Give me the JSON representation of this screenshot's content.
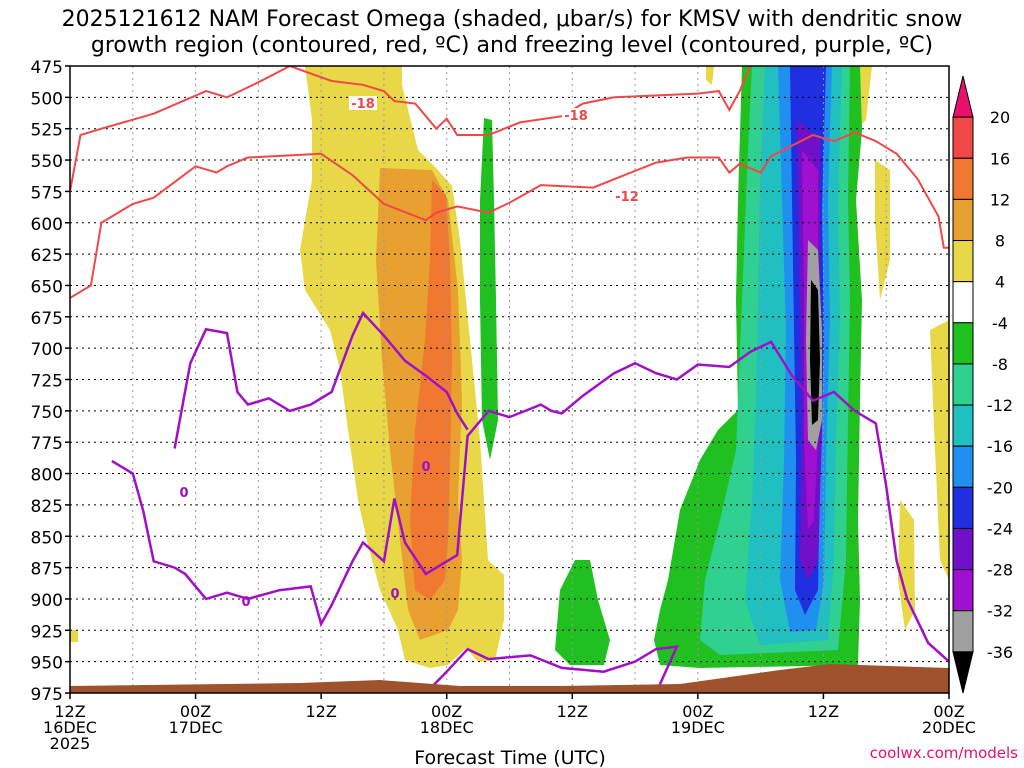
{
  "chart_data": {
    "type": "heatmap",
    "title_line1": "2025121612 NAM Forecast Omega (shaded, μbar/s) for KMSV with dendritic snow",
    "title_line2": "growth region (contoured, red, ºC) and freezing level (contoured, purple, ºC)",
    "xlabel": "Forecast Time (UTC)",
    "credit": "coolwx.com/models",
    "x_range_hours": [
      0,
      84
    ],
    "y_range_hpa": [
      475,
      975
    ],
    "y_ticks": [
      "475",
      "500",
      "525",
      "550",
      "575",
      "600",
      "625",
      "650",
      "675",
      "700",
      "725",
      "750",
      "775",
      "800",
      "825",
      "850",
      "875",
      "900",
      "925",
      "950",
      "975"
    ],
    "x_ticks": [
      {
        "hour": 0,
        "line1": "12Z",
        "line2": "16DEC",
        "line3": "2025"
      },
      {
        "hour": 12,
        "line1": "00Z",
        "line2": "17DEC",
        "line3": ""
      },
      {
        "hour": 24,
        "line1": "12Z",
        "line2": "",
        "line3": ""
      },
      {
        "hour": 36,
        "line1": "00Z",
        "line2": "18DEC",
        "line3": ""
      },
      {
        "hour": 48,
        "line1": "12Z",
        "line2": "",
        "line3": ""
      },
      {
        "hour": 60,
        "line1": "00Z",
        "line2": "19DEC",
        "line3": ""
      },
      {
        "hour": 72,
        "line1": "12Z",
        "line2": "",
        "line3": ""
      },
      {
        "hour": 84,
        "line1": "00Z",
        "line2": "20DEC",
        "line3": ""
      }
    ],
    "colorbar": {
      "labels": [
        "20",
        "16",
        "12",
        "8",
        "4",
        "-4",
        "-8",
        "-12",
        "-16",
        "-20",
        "-24",
        "-28",
        "-32",
        "-36"
      ],
      "colors": [
        "#e8106a",
        "#f04848",
        "#f07830",
        "#e8a030",
        "#e8d848",
        "#ffffff",
        "#20c020",
        "#30d090",
        "#20c0c0",
        "#2090f0",
        "#2030e0",
        "#7010c8",
        "#a010d0",
        "#a0a0a0",
        "#000000"
      ]
    },
    "contour_labels": {
      "dgz_minus18_a": "-18",
      "dgz_minus18_b": "-18",
      "dgz_minus12": "-12",
      "frz_0_a": "0",
      "frz_0_b": "0",
      "frz_0_c": "0",
      "frz_0_d": "0"
    },
    "series": [
      {
        "name": "-18C isotherm",
        "color": "#f04848",
        "points": [
          [
            0,
            575
          ],
          [
            1,
            530
          ],
          [
            3,
            525
          ],
          [
            8,
            513
          ],
          [
            13,
            495
          ],
          [
            15,
            500
          ],
          [
            18,
            488
          ],
          [
            21,
            475
          ],
          [
            25,
            487
          ],
          [
            28,
            490
          ],
          [
            30,
            495
          ],
          [
            31,
            503
          ],
          [
            33,
            505
          ],
          [
            35,
            525
          ],
          [
            36,
            517
          ],
          [
            37,
            530
          ],
          [
            40,
            530
          ],
          [
            43,
            520
          ],
          [
            47,
            515
          ],
          [
            49,
            505
          ],
          [
            52,
            500
          ],
          [
            60,
            497
          ],
          [
            62,
            495
          ],
          [
            63,
            510
          ],
          [
            64,
            495
          ],
          [
            65,
            475
          ]
        ]
      },
      {
        "name": "-12C isotherm",
        "color": "#f04848",
        "points": [
          [
            0,
            660
          ],
          [
            2,
            650
          ],
          [
            3,
            600
          ],
          [
            6,
            585
          ],
          [
            8,
            580
          ],
          [
            12,
            555
          ],
          [
            14,
            560
          ],
          [
            15,
            555
          ],
          [
            17,
            548
          ],
          [
            24,
            545
          ],
          [
            27,
            562
          ],
          [
            30,
            585
          ],
          [
            34,
            598
          ],
          [
            35,
            592
          ],
          [
            37,
            587
          ],
          [
            40,
            592
          ],
          [
            42,
            584
          ],
          [
            45,
            570
          ],
          [
            50,
            572
          ],
          [
            53,
            562
          ],
          [
            56,
            552
          ],
          [
            59,
            548
          ],
          [
            62,
            548
          ],
          [
            63,
            560
          ],
          [
            64,
            553
          ],
          [
            66,
            560
          ],
          [
            67,
            547
          ],
          [
            71,
            530
          ],
          [
            73,
            535
          ],
          [
            75,
            528
          ],
          [
            77,
            535
          ],
          [
            79,
            545
          ],
          [
            81,
            565
          ],
          [
            83,
            595
          ],
          [
            83.5,
            620
          ],
          [
            84,
            620
          ]
        ]
      },
      {
        "name": "0C freezing level",
        "color": "#a010c8",
        "points": [
          [
            4,
            790
          ],
          [
            6,
            800
          ],
          [
            7,
            830
          ],
          [
            8,
            870
          ],
          [
            10,
            875
          ],
          [
            11,
            880
          ],
          [
            13,
            900
          ],
          [
            15,
            895
          ],
          [
            17,
            900
          ],
          [
            20,
            893
          ],
          [
            23,
            890
          ],
          [
            24,
            920
          ],
          [
            25,
            905
          ],
          [
            27,
            870
          ],
          [
            28,
            855
          ],
          [
            30,
            870
          ],
          [
            31,
            820
          ],
          [
            32,
            855
          ],
          [
            34,
            880
          ],
          [
            37,
            865
          ],
          [
            38,
            770
          ],
          [
            40,
            750
          ],
          [
            42,
            755
          ],
          [
            45,
            745
          ],
          [
            46,
            750
          ],
          [
            47,
            752
          ],
          [
            49,
            738
          ],
          [
            52,
            720
          ],
          [
            54,
            712
          ],
          [
            56,
            720
          ],
          [
            58,
            725
          ],
          [
            60,
            713
          ],
          [
            63,
            715
          ],
          [
            65,
            703
          ],
          [
            67,
            695
          ],
          [
            69,
            722
          ],
          [
            71,
            742
          ],
          [
            73,
            735
          ],
          [
            75,
            750
          ],
          [
            77,
            760
          ],
          [
            78,
            810
          ],
          [
            79,
            870
          ],
          [
            80,
            900
          ],
          [
            82,
            935
          ],
          [
            84,
            950
          ]
        ]
      },
      {
        "name": "0C freezing level (west loop)",
        "color": "#a010c8",
        "points": [
          [
            10,
            780
          ],
          [
            11.5,
            712
          ],
          [
            13,
            685
          ],
          [
            15,
            688
          ],
          [
            16,
            735
          ],
          [
            17,
            745
          ],
          [
            19,
            740
          ],
          [
            21,
            750
          ],
          [
            23,
            745
          ],
          [
            25,
            735
          ],
          [
            27,
            690
          ],
          [
            28,
            672
          ],
          [
            30,
            690
          ],
          [
            32,
            710
          ],
          [
            34,
            722
          ],
          [
            36,
            735
          ],
          [
            37,
            752
          ],
          [
            38,
            765
          ]
        ]
      },
      {
        "name": "0C freezing level (lower loop)",
        "color": "#a010c8",
        "points": [
          [
            34,
            975
          ],
          [
            36,
            958
          ],
          [
            38,
            940
          ],
          [
            40,
            948
          ],
          [
            44,
            945
          ],
          [
            47,
            955
          ],
          [
            51,
            958
          ],
          [
            54,
            950
          ],
          [
            56,
            940
          ],
          [
            58,
            938
          ],
          [
            56,
            975
          ]
        ]
      }
    ]
  }
}
